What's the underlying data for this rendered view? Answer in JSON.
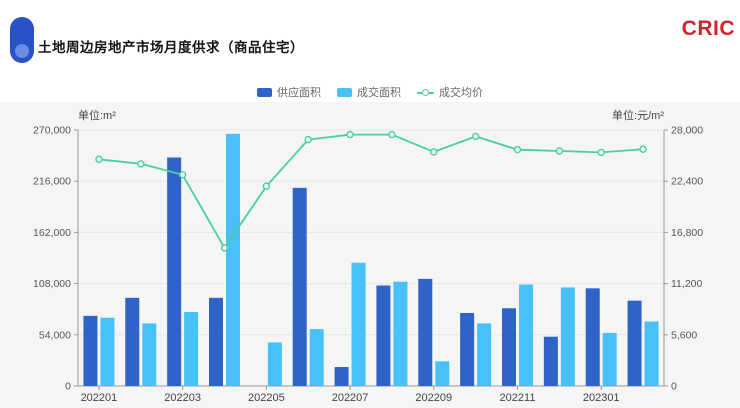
{
  "header": {
    "title": "土地周边房地产市场月度供求（商品住宅）",
    "logo": "CRIC"
  },
  "chart_data": {
    "type": "bar+line combo",
    "categories": [
      "202201",
      "202202",
      "202203",
      "202204",
      "202205",
      "202206",
      "202207",
      "202208",
      "202209",
      "202210",
      "202211",
      "202212",
      "202301",
      "202302"
    ],
    "x_tick_labels": [
      "202201",
      "202203",
      "202205",
      "202207",
      "202209",
      "202211",
      "202301"
    ],
    "series": [
      {
        "name": "供应面积",
        "type": "bar",
        "axis": "left",
        "color": "#2f63c8",
        "values": [
          74000,
          93000,
          241000,
          93000,
          0,
          209000,
          20000,
          106000,
          113000,
          77000,
          82000,
          52000,
          103000,
          90000
        ]
      },
      {
        "name": "成交面积",
        "type": "bar",
        "axis": "left",
        "color": "#47c1f7",
        "values": [
          72000,
          66000,
          78000,
          266000,
          46000,
          60000,
          130000,
          110000,
          26000,
          66000,
          107000,
          104000,
          56000,
          68000
        ]
      },
      {
        "name": "成交均价",
        "type": "line",
        "axis": "right",
        "color": "#47cf9f",
        "values": [
          24800,
          24300,
          23100,
          15100,
          21850,
          26950,
          27500,
          27500,
          25600,
          27300,
          25850,
          25700,
          25550,
          25900
        ]
      }
    ],
    "left_axis": {
      "unit": "单位:m²",
      "min": 0,
      "max": 270000,
      "step": 54000,
      "ticks": [
        "0",
        "54,000",
        "108,000",
        "162,000",
        "216,000",
        "270,000"
      ]
    },
    "right_axis": {
      "unit": "单位:元/m²",
      "min": 0,
      "max": 28000,
      "step": 5600,
      "ticks": [
        "0",
        "5,600",
        "11,200",
        "16,800",
        "22,400",
        "28,000"
      ]
    },
    "legend_position": "top-center",
    "grid": true
  }
}
